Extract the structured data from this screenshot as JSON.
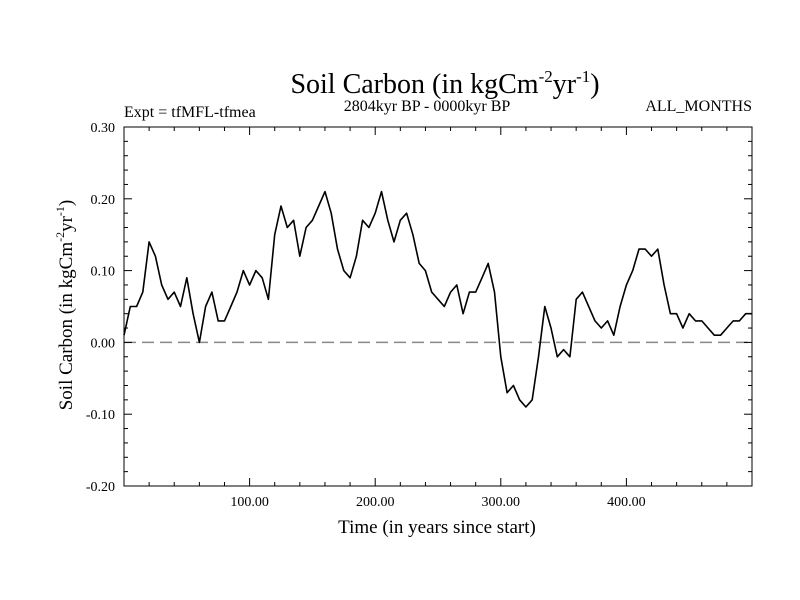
{
  "chart_data": {
    "type": "line",
    "title": {
      "main": "Soil Carbon (in kgCm",
      "sup1": "-2",
      "mid": "yr",
      "sup2": "-1",
      "end": ")"
    },
    "subtitle_left": "Expt = tfMFL-tfmea",
    "subtitle_center": "2804kyr BP - 0000kyr BP",
    "subtitle_right": "ALL_MONTHS",
    "xlabel": "Time (in years since start)",
    "ylabel": {
      "main": "Soil Carbon (in kgCm",
      "sup1": "-2",
      "mid": "yr",
      "sup2": "-1",
      "end": ")"
    },
    "xlim": [
      0,
      500
    ],
    "ylim": [
      -0.2,
      0.3
    ],
    "x_ticks": [
      100,
      200,
      300,
      400
    ],
    "x_tick_labels": [
      "100.00",
      "200.00",
      "300.00",
      "400.00"
    ],
    "y_ticks": [
      -0.2,
      -0.1,
      0.0,
      0.1,
      0.2,
      0.3
    ],
    "y_tick_labels": [
      "-0.20",
      "-0.10",
      "0.00",
      "0.10",
      "0.20",
      "0.30"
    ],
    "reference_line": {
      "y": 0.0,
      "style": "dashed",
      "color": "#888888"
    },
    "series": [
      {
        "name": "Soil Carbon",
        "color": "#000000",
        "x": [
          0,
          5,
          10,
          15,
          20,
          25,
          30,
          35,
          40,
          45,
          50,
          55,
          60,
          65,
          70,
          75,
          80,
          85,
          90,
          95,
          100,
          105,
          110,
          115,
          120,
          125,
          130,
          135,
          140,
          145,
          150,
          155,
          160,
          165,
          170,
          175,
          180,
          185,
          190,
          195,
          200,
          205,
          210,
          215,
          220,
          225,
          230,
          235,
          240,
          245,
          250,
          255,
          260,
          265,
          270,
          275,
          280,
          285,
          290,
          295,
          300,
          305,
          310,
          315,
          320,
          325,
          330,
          335,
          340,
          345,
          350,
          355,
          360,
          365,
          370,
          375,
          380,
          385,
          390,
          395,
          400,
          405,
          410,
          415,
          420,
          425,
          430,
          435,
          440,
          445,
          450,
          455,
          460,
          465,
          470,
          475,
          480,
          485,
          490,
          495,
          500
        ],
        "values": [
          0.01,
          0.05,
          0.05,
          0.07,
          0.14,
          0.12,
          0.08,
          0.06,
          0.07,
          0.05,
          0.09,
          0.04,
          0.0,
          0.05,
          0.07,
          0.03,
          0.03,
          0.05,
          0.07,
          0.1,
          0.08,
          0.1,
          0.09,
          0.06,
          0.15,
          0.19,
          0.16,
          0.17,
          0.12,
          0.16,
          0.17,
          0.19,
          0.21,
          0.18,
          0.13,
          0.1,
          0.09,
          0.12,
          0.17,
          0.16,
          0.18,
          0.21,
          0.17,
          0.14,
          0.17,
          0.18,
          0.15,
          0.11,
          0.1,
          0.07,
          0.06,
          0.05,
          0.07,
          0.08,
          0.04,
          0.07,
          0.07,
          0.09,
          0.11,
          0.07,
          -0.02,
          -0.07,
          -0.06,
          -0.08,
          -0.09,
          -0.08,
          -0.02,
          0.05,
          0.02,
          -0.02,
          -0.01,
          -0.02,
          0.06,
          0.07,
          0.05,
          0.03,
          0.02,
          0.03,
          0.01,
          0.05,
          0.08,
          0.1,
          0.13,
          0.13,
          0.12,
          0.13,
          0.08,
          0.04,
          0.04,
          0.02,
          0.04,
          0.03,
          0.03,
          0.02,
          0.01,
          0.01,
          0.02,
          0.03,
          0.03,
          0.04,
          0.04
        ]
      }
    ]
  }
}
